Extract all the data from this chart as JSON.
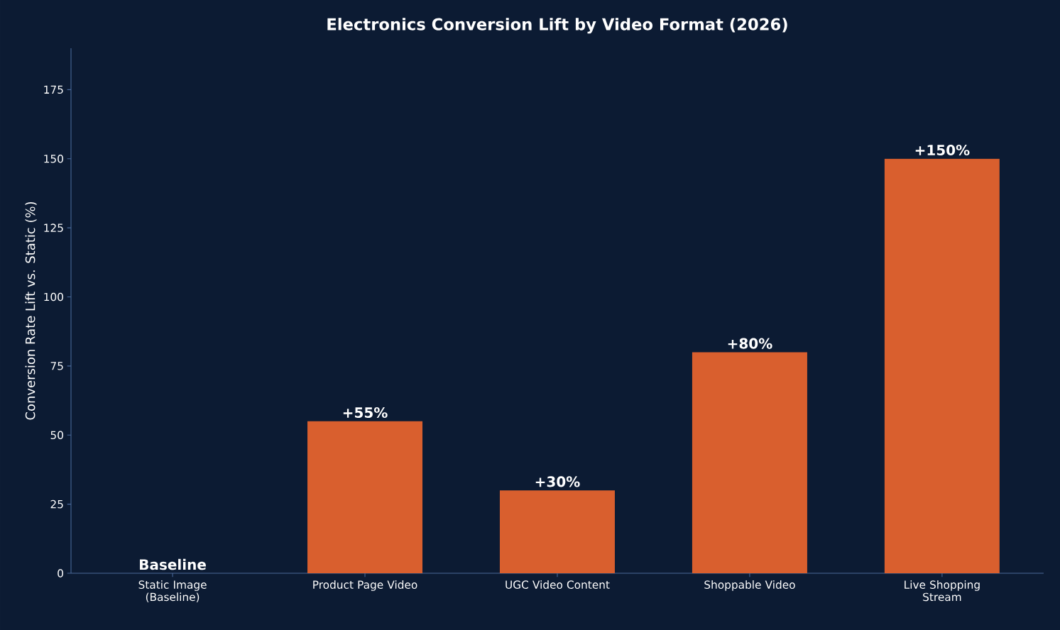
{
  "chart_data": {
    "type": "bar",
    "title": "Electronics Conversion Lift by Video Format (2026)",
    "ylabel": "Conversion Rate Lift vs. Static (%)",
    "categories": [
      "Static Image (Baseline)",
      "Product Page Video",
      "UGC Video Content",
      "Shoppable Video",
      "Live Shopping Stream"
    ],
    "values": [
      0,
      55,
      30,
      80,
      150
    ],
    "value_labels": [
      "Baseline",
      "+55%",
      "+30%",
      "+80%",
      "+150%"
    ],
    "color": "#d95f2e",
    "ylim": [
      0,
      190
    ],
    "yticks": [
      0,
      25,
      50,
      75,
      100,
      125,
      150,
      175
    ]
  }
}
